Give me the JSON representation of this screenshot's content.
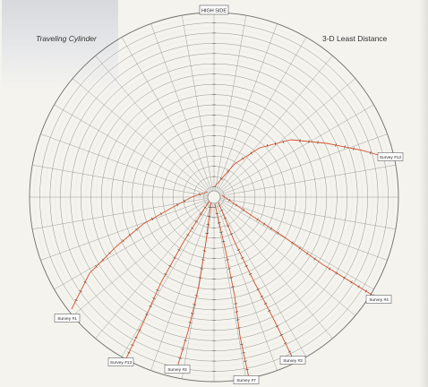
{
  "title_left": "Traveling Cylinder",
  "title_right": "3-D Least Distance",
  "top_label": "HIGH SIDE",
  "colors": {
    "background": "#f4f3ee",
    "grid": "#8a8a86",
    "grid_minor": "#b9b9b4",
    "survey_line": "#d4532c",
    "tick": "#2b2b2b",
    "label_box": "#ffffff"
  },
  "surveys": [
    {
      "label": "Survey #1"
    },
    {
      "label": "Survey #2"
    },
    {
      "label": "Survey #3"
    },
    {
      "label": "Survey #4"
    },
    {
      "label": "Survey #7"
    },
    {
      "label": "Survey #12"
    },
    {
      "label": "Survey #13"
    }
  ]
}
